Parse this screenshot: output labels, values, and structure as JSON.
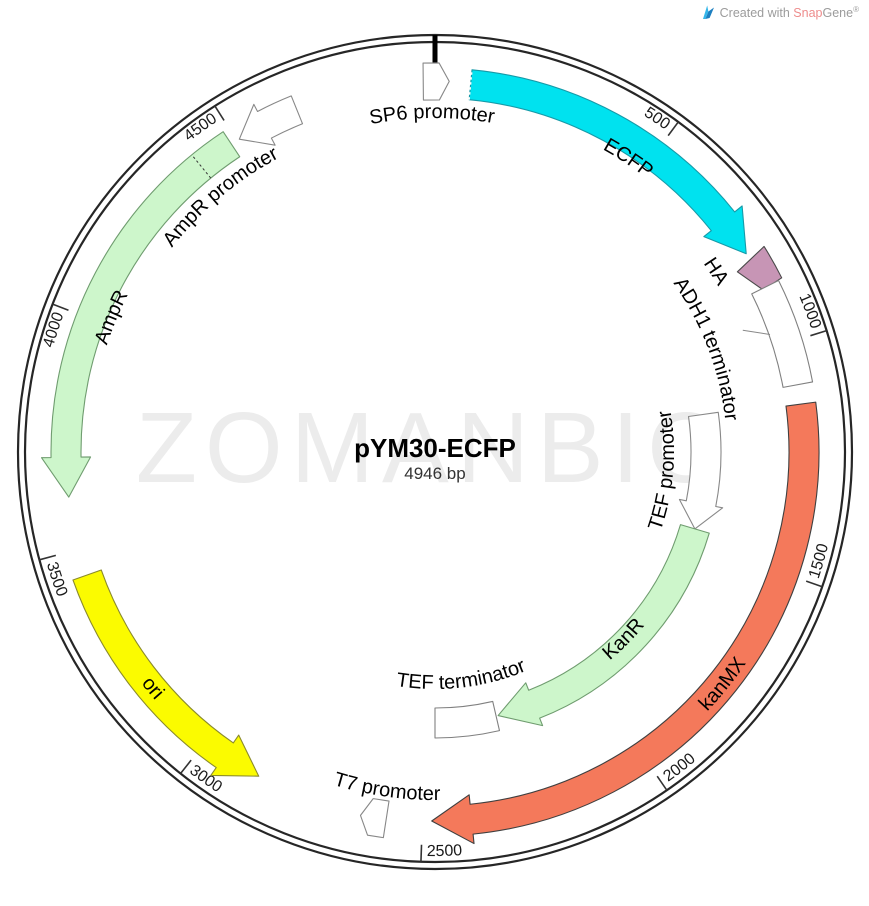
{
  "credit": {
    "prefix": "Created with ",
    "brand_snap": "Snap",
    "brand_gene": "Gene",
    "registered": "®"
  },
  "watermark": "ZOMANBIO",
  "map": {
    "name": "pYM30-ECFP",
    "size_label": "4946 bp",
    "length_bp": 4946,
    "ticks": [
      500,
      1000,
      1500,
      2000,
      2500,
      3000,
      3500,
      4000,
      4500
    ],
    "features": [
      {
        "id": "sp6-promoter",
        "label": "SP6 promoter",
        "kind": "flag",
        "bp": 4938,
        "direction": "cw",
        "fill": "#ffffff",
        "stroke": "#888888",
        "label_bp": 4939,
        "label_r": 334
      },
      {
        "id": "ecfp",
        "label": "ECFP",
        "kind": "arc-arrow",
        "bp_start": 76,
        "bp_end": 790,
        "direction": "cw",
        "ring": "outer",
        "fill": "#00e2ef",
        "stroke": "#169aa8",
        "label_bp": 458,
        "label_r": 346,
        "dashed_start": true
      },
      {
        "id": "ha",
        "label": "HA",
        "kind": "wedge",
        "bp_start": 797,
        "bp_end": 870,
        "fill": "#c795b5",
        "stroke": "#4a4a4a",
        "label_bp": 787,
        "label_r": 328
      },
      {
        "id": "adh1-terminator",
        "label": "ADH1 terminator",
        "kind": "box",
        "bp_start": 872,
        "bp_end": 1092,
        "ring": "outer",
        "fill": "#ffffff",
        "stroke": "#808080",
        "label_bp": 952,
        "label_r": 292,
        "leader": {
          "from_bp": 940,
          "from_r": 331,
          "to_bp": 971,
          "to_r": 355
        }
      },
      {
        "id": "kanmx",
        "label": "kanMX",
        "kind": "arc-arrow",
        "bp_start": 1134,
        "bp_end": 2480,
        "direction": "cw",
        "ring": "outer",
        "fill": "#f4795b",
        "stroke": "#3f3f3f",
        "label_bp": 1771,
        "label_r": 376
      },
      {
        "id": "tef-promoter",
        "label": "TEF promoter",
        "kind": "arc-arrow",
        "bp_start": 1127,
        "bp_end": 1463,
        "direction": "cw",
        "ring": "inner",
        "fill": "#ffffff",
        "stroke": "#888888",
        "label_bp": 1300,
        "label_r": 239
      },
      {
        "id": "kanr",
        "label": "KanR",
        "kind": "arc-arrow",
        "bp_start": 1463,
        "bp_end": 2288,
        "direction": "cw",
        "ring": "inner",
        "fill": "#cdf6cb",
        "stroke": "#6f9c6f",
        "label_bp": 1852,
        "label_r": 272
      },
      {
        "id": "tef-terminator",
        "label": "TEF terminator",
        "kind": "box",
        "bp_start": 2294,
        "bp_end": 2473,
        "ring": "inner",
        "fill": "#ffffff",
        "stroke": "#808080",
        "label_bp": 2382,
        "label_r": 237
      },
      {
        "id": "t7-promoter",
        "label": "T7 promoter",
        "kind": "flag",
        "bp": 2594,
        "direction": "cw",
        "fill": "#ffffff",
        "stroke": "#888888",
        "label_bp": 2584,
        "label_r": 348
      },
      {
        "id": "ori",
        "label": "ori",
        "kind": "arc-arrow",
        "bp_start": 2865,
        "bp_end": 3442,
        "direction": "ccw",
        "ring": "outer",
        "fill": "#fbfb00",
        "stroke": "#8a8a2c",
        "label_bp": 3161,
        "label_r": 374
      },
      {
        "id": "ampr",
        "label": "AmpR",
        "kind": "arc-arrow",
        "bp_start": 3613,
        "bp_end": 4486,
        "direction": "ccw",
        "ring": "outer",
        "fill": "#cdf6cb",
        "stroke": "#6f9c6f",
        "label_bp": 4020,
        "label_r": 345,
        "separator_bp": 4406
      },
      {
        "id": "ampr-promoter",
        "label": "AmpR promoter",
        "kind": "arc-arrow",
        "bp_start": 4506,
        "bp_end": 4644,
        "direction": "ccw",
        "ring": "outer",
        "fill": "#ffffff",
        "stroke": "#888888",
        "label_bp": 4396,
        "label_r": 333
      }
    ]
  }
}
